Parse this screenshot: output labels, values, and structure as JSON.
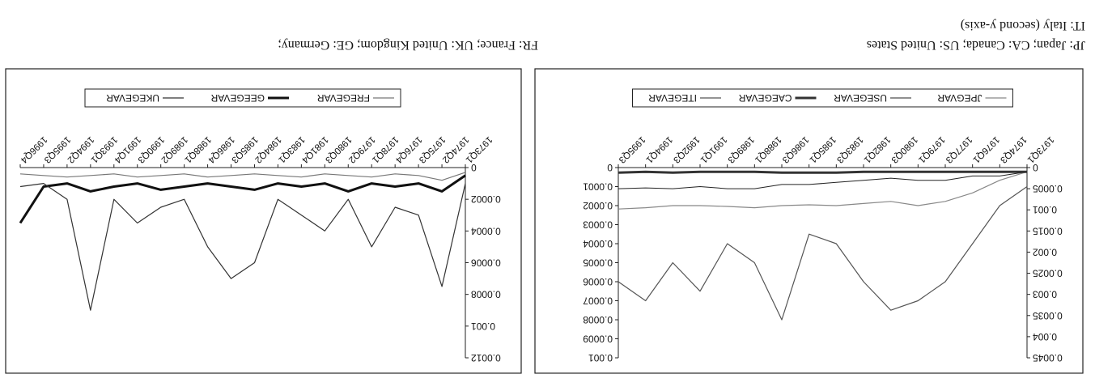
{
  "captions": {
    "left_line1": "JP: Japan; CA: Canada; US: United States",
    "left_line2": "IT: Italy (second y-axis)",
    "right_line1": "FR: France; UK: United Kingdom; GE: Germany;"
  },
  "chart_data": [
    {
      "type": "line",
      "title": "",
      "xlabel": "",
      "ylabel": "",
      "ylim": [
        0,
        0.0045
      ],
      "y2lim": [
        0,
        0.001
      ],
      "yticks": [
        "0",
        "0.0005",
        "0.001",
        "0.0015",
        "0.002",
        "0.0025",
        "0.003",
        "0.0035",
        "0.004",
        "0.0045"
      ],
      "y2ticks": [
        "0",
        "0.0001",
        "0.0002",
        "0.0003",
        "0.0004",
        "0.0005",
        "0.0006",
        "0.0007",
        "0.0008",
        "0.0009",
        "0.001"
      ],
      "categories": [
        "1973Q1",
        "1974Q3",
        "1976Q1",
        "1977Q3",
        "1979Q1",
        "1980Q3",
        "1982Q1",
        "1983Q3",
        "1985Q1",
        "1986Q3",
        "1988Q1",
        "1989Q3",
        "1991Q1",
        "1992Q3",
        "1994Q1",
        "1995Q3"
      ],
      "legend_position": "bottom",
      "grid": false,
      "series": [
        {
          "name": "JPEGVAR",
          "color": "#888888",
          "axis": "left",
          "values": [
            0.0001,
            0.0003,
            0.0006,
            0.0008,
            0.0009,
            0.0008,
            0.00085,
            0.0009,
            0.00088,
            0.0009,
            0.00095,
            0.00092,
            0.0009,
            0.0009,
            0.00095,
            0.00098
          ]
        },
        {
          "name": "USEGEVAR",
          "color": "#222222",
          "axis": "left",
          "values": [
            0.0001,
            0.0002,
            0.0002,
            0.0003,
            0.0003,
            0.00025,
            0.0003,
            0.00035,
            0.0004,
            0.0004,
            0.0005,
            0.0005,
            0.00045,
            0.0005,
            0.00048,
            0.0005
          ]
        },
        {
          "name": "CAEGEVAR",
          "color": "#333333",
          "axis": "left",
          "values": [
            0.0001,
            0.0001,
            0.0001,
            0.0001,
            0.0001,
            0.0001,
            0.0001,
            0.00012,
            0.00012,
            0.00012,
            0.0001,
            0.0001,
            0.0001,
            0.00012,
            0.0001,
            0.00012
          ]
        },
        {
          "name": "ITEGEVAR",
          "color": "#555555",
          "axis": "right",
          "values": [
            0.0001,
            0.0002,
            0.0004,
            0.0006,
            0.0007,
            0.00075,
            0.0006,
            0.0004,
            0.00035,
            0.0008,
            0.0005,
            0.0004,
            0.00065,
            0.0005,
            0.0007,
            0.0006
          ]
        }
      ]
    },
    {
      "type": "line",
      "title": "",
      "xlabel": "",
      "ylabel": "",
      "ylim": [
        0,
        0.0012
      ],
      "yticks": [
        "0",
        "0.0002",
        "0.0004",
        "0.0006",
        "0.0008",
        "0.001",
        "0.0012"
      ],
      "categories": [
        "1973Q1",
        "1974Q2",
        "1975Q3",
        "1976Q4",
        "1978Q1",
        "1979Q2",
        "1980Q3",
        "1981Q4",
        "1983Q1",
        "1984Q2",
        "1985Q3",
        "1986Q4",
        "1988Q1",
        "1989Q2",
        "1990Q3",
        "1991Q4",
        "1993Q1",
        "1994Q2",
        "1995Q3",
        "1996Q4"
      ],
      "legend_position": "bottom",
      "grid": false,
      "series": [
        {
          "name": "FREGEVAR",
          "color": "#777777",
          "axis": "left",
          "values": [
            3e-05,
            8e-05,
            5e-05,
            4e-05,
            6e-05,
            5e-05,
            4e-05,
            6e-05,
            5e-05,
            4e-05,
            5e-05,
            6e-05,
            4e-05,
            5e-05,
            6e-05,
            4e-05,
            5e-05,
            6e-05,
            5e-05,
            4e-05
          ]
        },
        {
          "name": "GEEGEVAR",
          "color": "#111111",
          "axis": "left",
          "values": [
            5e-05,
            0.00015,
            0.0001,
            0.00012,
            0.0001,
            0.00015,
            0.0001,
            0.00012,
            0.0001,
            0.00014,
            0.00012,
            0.0001,
            0.00012,
            0.00014,
            0.0001,
            0.00012,
            0.00015,
            0.0001,
            0.00012,
            0.00035
          ]
        },
        {
          "name": "UKEGEVAR",
          "color": "#333333",
          "axis": "left",
          "values": [
            0.0001,
            0.00075,
            0.0003,
            0.00025,
            0.0005,
            0.0002,
            0.0004,
            0.0003,
            0.0002,
            0.0006,
            0.0007,
            0.0005,
            0.0002,
            0.00025,
            0.00035,
            0.0002,
            0.0009,
            0.0002,
            0.0001,
            0.00012
          ]
        }
      ]
    }
  ]
}
